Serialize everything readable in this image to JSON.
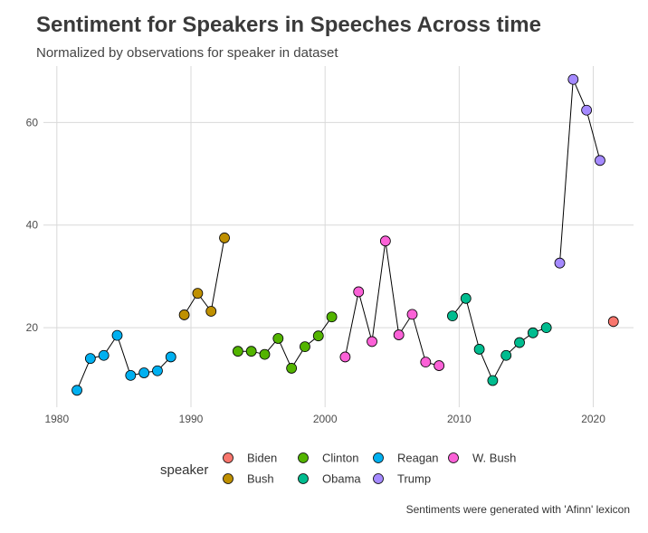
{
  "chart_data": {
    "type": "scatter",
    "title": "Sentiment for Speakers in Speeches Across time",
    "subtitle": "Normalized by observations for speaker in dataset",
    "caption": "Sentiments were generated with 'Afinn' lexicon",
    "xlim": [
      1979,
      2023
    ],
    "ylim": [
      4.5,
      71
    ],
    "x_ticks": [
      1980,
      1990,
      2000,
      2010,
      2020
    ],
    "y_ticks": [
      20,
      40,
      60
    ],
    "grid": true,
    "legend": {
      "title": "speaker",
      "position": "bottom",
      "entries": [
        "Biden",
        "Bush",
        "Clinton",
        "Obama",
        "Reagan",
        "Trump",
        "W. Bush"
      ]
    },
    "series": [
      {
        "name": "Reagan",
        "color": "#00B0F0",
        "x": [
          1981.5,
          1982.5,
          1983.5,
          1984.5,
          1985.5,
          1986.5,
          1987.5,
          1988.5
        ],
        "y": [
          7.8,
          14.0,
          14.6,
          18.5,
          10.7,
          11.2,
          11.6,
          14.3
        ]
      },
      {
        "name": "Bush",
        "color": "#BF9000",
        "x": [
          1989.5,
          1990.5,
          1991.5,
          1992.5
        ],
        "y": [
          22.5,
          26.7,
          23.2,
          37.5
        ]
      },
      {
        "name": "Clinton",
        "color": "#53B400",
        "x": [
          1993.5,
          1994.5,
          1995.5,
          1996.5,
          1997.5,
          1998.5,
          1999.5,
          2000.5
        ],
        "y": [
          15.4,
          15.4,
          14.8,
          17.9,
          12.1,
          16.3,
          18.4,
          22.1
        ]
      },
      {
        "name": "W. Bush",
        "color": "#FB61D7",
        "x": [
          2001.5,
          2002.5,
          2003.5,
          2004.5,
          2005.5,
          2006.5,
          2007.5,
          2008.5
        ],
        "y": [
          14.3,
          27.0,
          17.3,
          36.9,
          18.6,
          22.6,
          13.3,
          12.6
        ]
      },
      {
        "name": "Obama",
        "color": "#00BC8F",
        "x": [
          2009.5,
          2010.5,
          2011.5,
          2012.5,
          2013.5,
          2014.5,
          2015.5,
          2016.5
        ],
        "y": [
          22.3,
          25.7,
          15.8,
          9.7,
          14.6,
          17.1,
          19.0,
          20.0
        ]
      },
      {
        "name": "Trump",
        "color": "#A58AFF",
        "x": [
          2017.5,
          2018.5,
          2019.5,
          2020.5
        ],
        "y": [
          32.6,
          68.4,
          62.4,
          52.6
        ]
      },
      {
        "name": "Biden",
        "color": "#F8766D",
        "x": [
          2021.5
        ],
        "y": [
          21.2
        ]
      }
    ]
  }
}
